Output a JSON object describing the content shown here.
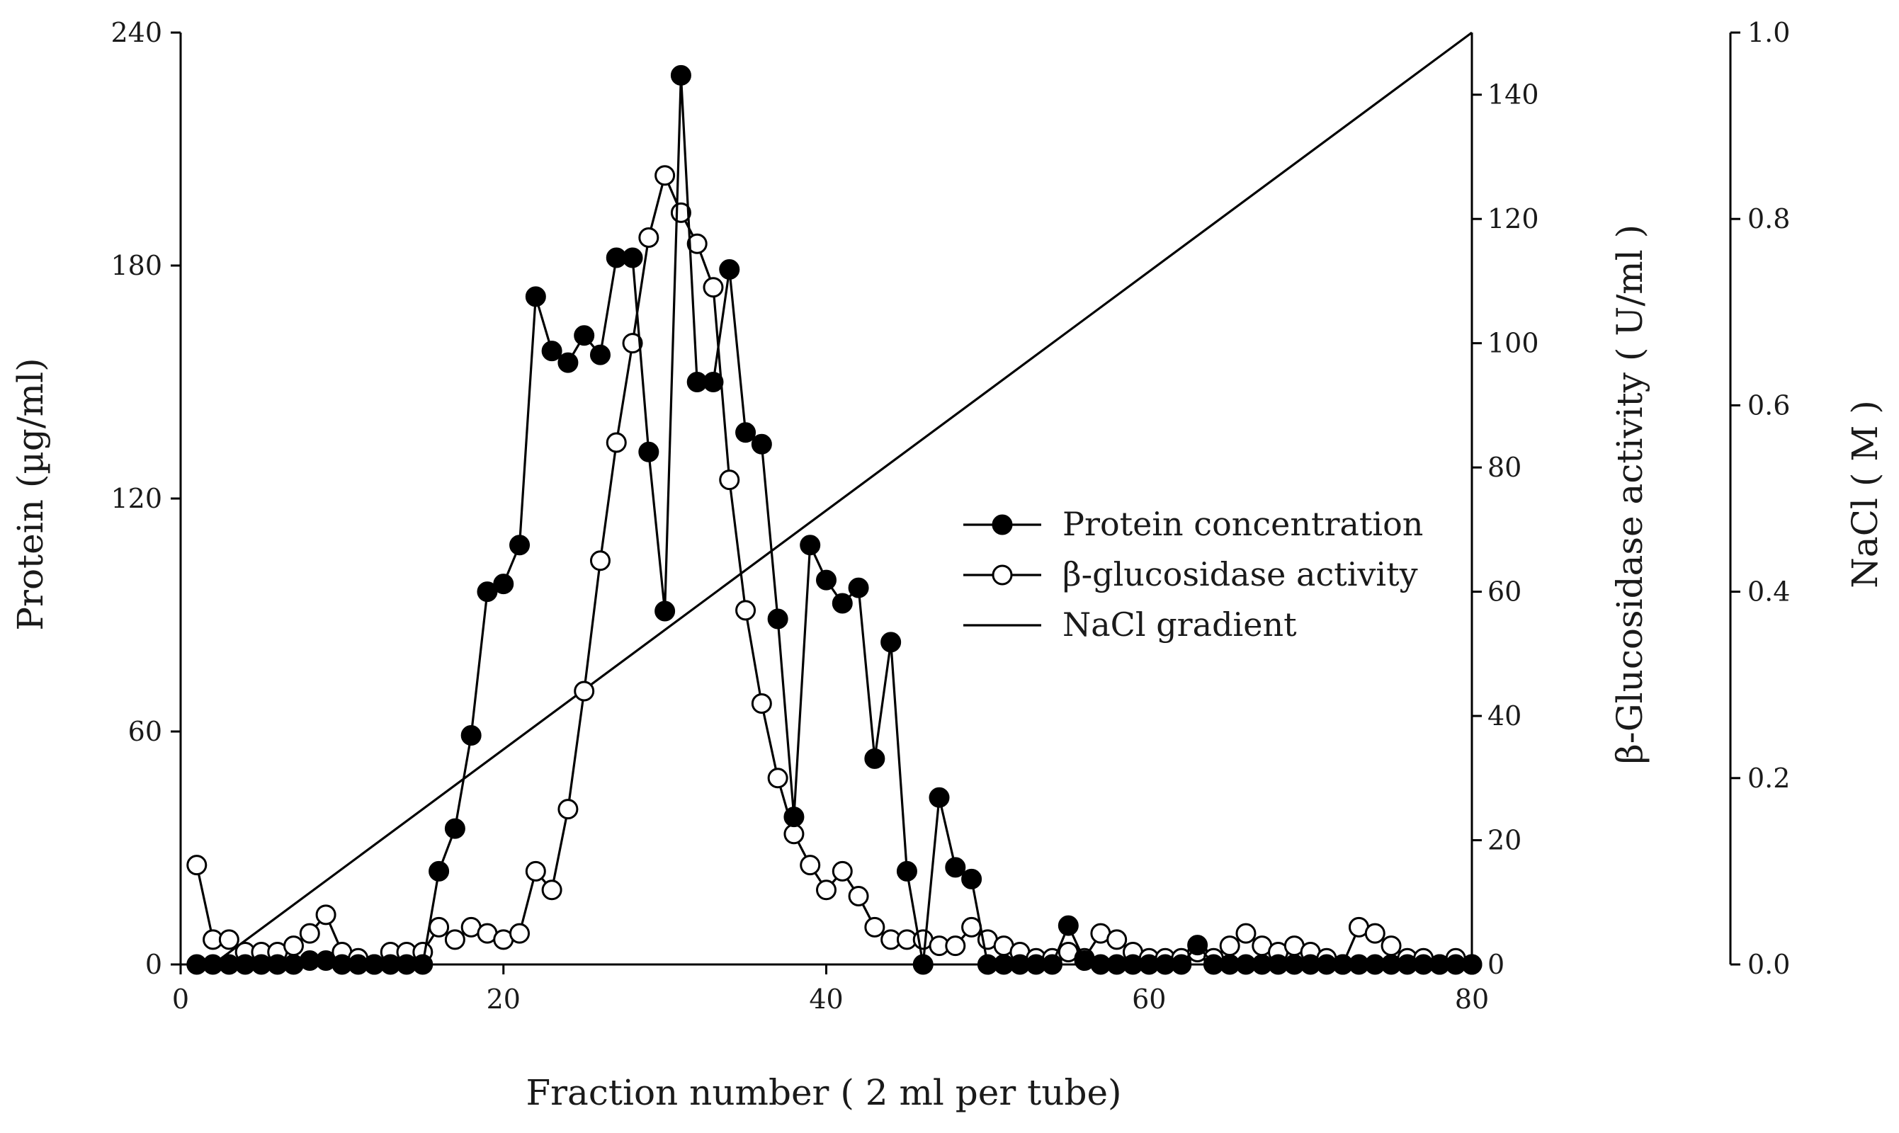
{
  "chart_data": {
    "type": "line",
    "title": "",
    "xlabel": "Fraction number ( 2 ml per tube)",
    "xlim": [
      0,
      80
    ],
    "xticks": [
      0,
      20,
      40,
      60,
      80
    ],
    "ylabel_left": "Protein  (µg/ml)",
    "ylim_left": [
      0,
      240
    ],
    "yticks_left": [
      0,
      60,
      120,
      180,
      240
    ],
    "ylabel_right": "β-Glucosidase activity ( U/ml )",
    "ylim_right": [
      0,
      150
    ],
    "yticks_right": [
      0,
      20,
      40,
      60,
      80,
      100,
      120,
      140
    ],
    "ylabel_right2": "NaCl ( M )",
    "ylim_right2": [
      0,
      1.0
    ],
    "yticks_right2": [
      "0.0",
      "0.2",
      "0.4",
      "0.6",
      "0.8",
      "1.0"
    ],
    "legend_position": "center-right",
    "series": [
      {
        "name": "Protein concentration",
        "axis": "left",
        "marker": "filled-circle",
        "x": [
          1,
          2,
          3,
          4,
          5,
          6,
          7,
          8,
          9,
          10,
          11,
          12,
          13,
          14,
          15,
          16,
          17,
          18,
          19,
          20,
          21,
          22,
          23,
          24,
          25,
          26,
          27,
          28,
          29,
          30,
          31,
          32,
          33,
          34,
          35,
          36,
          37,
          38,
          39,
          40,
          41,
          42,
          43,
          44,
          45,
          46,
          47,
          48,
          49,
          50,
          51,
          52,
          53,
          54,
          55,
          56,
          57,
          58,
          59,
          60,
          61,
          62,
          63,
          64,
          65,
          66,
          67,
          68,
          69,
          70,
          71,
          72,
          73,
          74,
          75,
          76,
          77,
          78,
          79,
          80
        ],
        "values": [
          0,
          0,
          0,
          0,
          0,
          0,
          0,
          1,
          1,
          0,
          0,
          0,
          0,
          0,
          0,
          24,
          35,
          59,
          96,
          98,
          108,
          172,
          158,
          155,
          162,
          157,
          182,
          182,
          132,
          91,
          229,
          150,
          150,
          179,
          137,
          134,
          89,
          38,
          108,
          99,
          93,
          97,
          53,
          83,
          24,
          0,
          43,
          25,
          22,
          0,
          0,
          0,
          0,
          0,
          10,
          1,
          0,
          0,
          0,
          0,
          0,
          0,
          5,
          0,
          0,
          0,
          0,
          0,
          0,
          0,
          0,
          0,
          0,
          0,
          0,
          0,
          0,
          0,
          0,
          0
        ]
      },
      {
        "name": "β-glucosidase activity",
        "axis": "right",
        "marker": "open-circle",
        "x": [
          1,
          2,
          3,
          4,
          5,
          6,
          7,
          8,
          9,
          10,
          11,
          12,
          13,
          14,
          15,
          16,
          17,
          18,
          19,
          20,
          21,
          22,
          23,
          24,
          25,
          26,
          27,
          28,
          29,
          30,
          31,
          32,
          33,
          34,
          35,
          36,
          37,
          38,
          39,
          40,
          41,
          42,
          43,
          44,
          45,
          46,
          47,
          48,
          49,
          50,
          51,
          52,
          53,
          54,
          55,
          56,
          57,
          58,
          59,
          60,
          61,
          62,
          63,
          64,
          65,
          66,
          67,
          68,
          69,
          70,
          71,
          72,
          73,
          74,
          75,
          76,
          77,
          78,
          79,
          80
        ],
        "values": [
          16,
          4,
          4,
          2,
          2,
          2,
          3,
          5,
          8,
          2,
          1,
          0,
          2,
          2,
          2,
          6,
          4,
          6,
          5,
          4,
          5,
          15,
          12,
          25,
          44,
          65,
          84,
          100,
          117,
          127,
          121,
          116,
          109,
          78,
          57,
          42,
          30,
          21,
          16,
          12,
          15,
          11,
          6,
          4,
          4,
          4,
          3,
          3,
          6,
          4,
          3,
          2,
          1,
          1,
          2,
          1,
          5,
          4,
          2,
          1,
          1,
          1,
          2,
          1,
          3,
          5,
          3,
          2,
          3,
          2,
          1,
          0,
          6,
          5,
          3,
          1,
          1,
          0,
          1,
          0
        ]
      },
      {
        "name": "NaCl gradient",
        "axis": "right2",
        "marker": "none",
        "x": [
          2,
          80
        ],
        "values": [
          0.0,
          1.0
        ]
      }
    ]
  }
}
